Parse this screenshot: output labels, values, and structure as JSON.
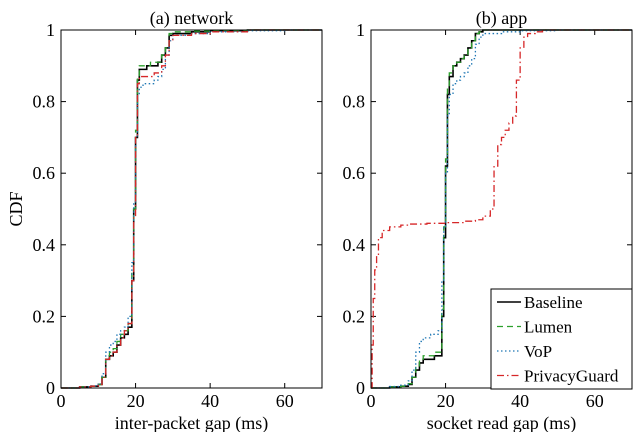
{
  "chart_data": [
    {
      "type": "line",
      "title": "(a) network",
      "xlabel": "inter-packet gap (ms)",
      "ylabel": "CDF",
      "xlim": [
        0,
        70
      ],
      "ylim": [
        0,
        1
      ],
      "xticks": [
        "0",
        "20",
        "40",
        "60"
      ],
      "yticks": [
        "0",
        "0.2",
        "0.4",
        "0.6",
        "0.8",
        "1"
      ],
      "series": [
        {
          "name": "Baseline",
          "color": "#000000",
          "style": "solid",
          "x": [
            0,
            5,
            8,
            10,
            11,
            12,
            13,
            14,
            15,
            16,
            17,
            18,
            19,
            19.5,
            20,
            20.5,
            21,
            22,
            23,
            24,
            25,
            26,
            27,
            28,
            29,
            30,
            35,
            40,
            50,
            60,
            70
          ],
          "y": [
            0,
            0.003,
            0.005,
            0.01,
            0.03,
            0.08,
            0.09,
            0.1,
            0.12,
            0.14,
            0.15,
            0.17,
            0.3,
            0.5,
            0.7,
            0.86,
            0.89,
            0.89,
            0.9,
            0.9,
            0.9,
            0.91,
            0.93,
            0.95,
            0.985,
            0.99,
            0.995,
            0.998,
            1,
            1,
            1
          ]
        },
        {
          "name": "Lumen",
          "color": "#2ca02c",
          "style": "dash",
          "x": [
            0,
            5,
            8,
            10,
            11,
            12,
            13,
            14,
            15,
            16,
            17,
            18,
            19,
            19.5,
            20,
            20.5,
            21,
            22,
            23,
            24,
            25,
            26,
            27,
            28,
            29,
            30,
            35,
            40,
            50,
            60,
            70
          ],
          "y": [
            0,
            0.003,
            0.005,
            0.01,
            0.03,
            0.08,
            0.1,
            0.11,
            0.13,
            0.15,
            0.16,
            0.18,
            0.32,
            0.5,
            0.72,
            0.87,
            0.9,
            0.9,
            0.9,
            0.91,
            0.91,
            0.91,
            0.93,
            0.95,
            0.99,
            0.995,
            0.997,
            0.999,
            1,
            1,
            1
          ]
        },
        {
          "name": "VoP",
          "color": "#1f77b4",
          "style": "dot",
          "x": [
            0,
            5,
            8,
            10,
            11,
            12,
            13,
            14,
            15,
            16,
            17,
            18,
            19,
            19.5,
            20,
            20.5,
            21,
            22,
            23,
            24,
            25,
            26,
            27,
            28,
            29,
            30,
            35,
            40,
            50,
            60,
            70
          ],
          "y": [
            0,
            0.003,
            0.006,
            0.012,
            0.04,
            0.1,
            0.12,
            0.13,
            0.15,
            0.16,
            0.17,
            0.2,
            0.35,
            0.52,
            0.7,
            0.82,
            0.84,
            0.85,
            0.85,
            0.85,
            0.86,
            0.87,
            0.89,
            0.93,
            0.97,
            0.985,
            0.99,
            0.995,
            0.998,
            1,
            1
          ]
        },
        {
          "name": "PrivacyGuard",
          "color": "#d62728",
          "style": "dashdot",
          "x": [
            0,
            5,
            8,
            10,
            11,
            12,
            13,
            14,
            15,
            16,
            17,
            18,
            19,
            19.5,
            20,
            20.5,
            21,
            22,
            23,
            24,
            25,
            26,
            27,
            28,
            29,
            30,
            35,
            40,
            50,
            60,
            70
          ],
          "y": [
            0,
            0.003,
            0.005,
            0.01,
            0.03,
            0.08,
            0.09,
            0.1,
            0.12,
            0.14,
            0.16,
            0.18,
            0.3,
            0.48,
            0.7,
            0.85,
            0.87,
            0.87,
            0.87,
            0.87,
            0.88,
            0.88,
            0.9,
            0.93,
            0.97,
            0.985,
            0.99,
            0.995,
            1,
            1,
            1
          ]
        }
      ]
    },
    {
      "type": "line",
      "title": "(b) app",
      "xlabel": "socket read gap (ms)",
      "ylabel": "",
      "xlim": [
        0,
        70
      ],
      "ylim": [
        0,
        1
      ],
      "xticks": [
        "0",
        "20",
        "40",
        "60"
      ],
      "yticks": [
        "0",
        "0.2",
        "0.4",
        "0.6",
        "0.8",
        "1"
      ],
      "legend_position": "bottom-right",
      "series": [
        {
          "name": "Baseline",
          "color": "#000000",
          "style": "solid",
          "x": [
            0,
            5,
            8,
            10,
            11,
            12,
            13,
            14,
            15,
            16,
            17,
            18,
            19,
            19.5,
            20,
            20.5,
            21,
            22,
            23,
            24,
            25,
            26,
            27,
            28,
            29,
            30,
            35,
            40,
            50,
            60,
            70
          ],
          "y": [
            0,
            0.003,
            0.005,
            0.01,
            0.03,
            0.05,
            0.07,
            0.08,
            0.08,
            0.08,
            0.09,
            0.09,
            0.2,
            0.42,
            0.62,
            0.82,
            0.87,
            0.9,
            0.91,
            0.92,
            0.93,
            0.95,
            0.97,
            0.99,
            0.995,
            1,
            1,
            1,
            1,
            1,
            1
          ]
        },
        {
          "name": "Lumen",
          "color": "#2ca02c",
          "style": "dash",
          "x": [
            0,
            5,
            8,
            10,
            11,
            12,
            13,
            14,
            15,
            16,
            17,
            18,
            19,
            19.5,
            20,
            20.5,
            21,
            22,
            23,
            24,
            25,
            26,
            27,
            28,
            29,
            30,
            35,
            40,
            50,
            60,
            70
          ],
          "y": [
            0,
            0.003,
            0.005,
            0.012,
            0.03,
            0.06,
            0.08,
            0.09,
            0.09,
            0.09,
            0.1,
            0.1,
            0.22,
            0.45,
            0.64,
            0.84,
            0.88,
            0.9,
            0.91,
            0.92,
            0.93,
            0.95,
            0.97,
            0.99,
            0.995,
            1,
            1,
            1,
            1,
            1,
            1
          ]
        },
        {
          "name": "VoP",
          "color": "#1f77b4",
          "style": "dot",
          "x": [
            0,
            5,
            8,
            10,
            11,
            12,
            13,
            14,
            15,
            16,
            17,
            18,
            19,
            19.5,
            20,
            20.5,
            21,
            22,
            23,
            24,
            25,
            26,
            27,
            28,
            29,
            30,
            35,
            40,
            50,
            60,
            70
          ],
          "y": [
            0,
            0.004,
            0.008,
            0.02,
            0.05,
            0.1,
            0.13,
            0.14,
            0.14,
            0.15,
            0.15,
            0.16,
            0.3,
            0.45,
            0.6,
            0.76,
            0.82,
            0.85,
            0.86,
            0.87,
            0.88,
            0.9,
            0.92,
            0.96,
            0.98,
            0.99,
            0.995,
            0.998,
            1,
            1,
            1
          ]
        },
        {
          "name": "PrivacyGuard",
          "color": "#d62728",
          "style": "dashdot",
          "x": [
            0,
            0.3,
            0.6,
            1,
            1.5,
            2,
            3,
            5,
            8,
            10,
            15,
            20,
            25,
            28,
            30,
            32,
            33,
            34,
            35,
            36,
            37,
            38,
            39,
            40,
            41,
            42,
            44,
            46,
            50,
            60,
            70
          ],
          "y": [
            0,
            0.12,
            0.25,
            0.33,
            0.37,
            0.42,
            0.44,
            0.45,
            0.455,
            0.458,
            0.46,
            0.462,
            0.466,
            0.47,
            0.48,
            0.5,
            0.62,
            0.68,
            0.7,
            0.72,
            0.74,
            0.76,
            0.86,
            0.95,
            0.98,
            0.99,
            0.995,
            1,
            1,
            1,
            1
          ]
        }
      ]
    }
  ]
}
